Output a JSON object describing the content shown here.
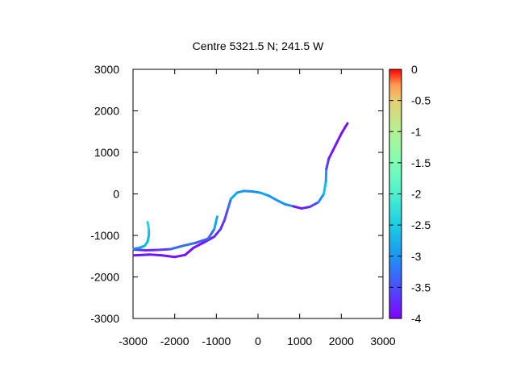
{
  "chart_data": {
    "type": "line",
    "title": "Centre 5321.5 N; 241.5  W",
    "xlabel": "",
    "ylabel": "",
    "xlim": [
      -3000,
      3000
    ],
    "ylim": [
      -3000,
      3000
    ],
    "xticks": [
      -3000,
      -2000,
      -1000,
      0,
      1000,
      2000,
      3000
    ],
    "yticks": [
      -3000,
      -2000,
      -1000,
      0,
      1000,
      2000,
      3000
    ],
    "xtick_labels": [
      "-3000",
      "-2000",
      "-1000",
      "0",
      "1000",
      "2000",
      "3000"
    ],
    "ytick_labels": [
      "-3000",
      "-2000",
      "-1000",
      "0",
      "1000",
      "2000",
      "3000"
    ],
    "grid": false,
    "colorbar": {
      "range": [
        -4,
        0
      ],
      "ticks": [
        0,
        -0.5,
        -1,
        -1.5,
        -2,
        -2.5,
        -3,
        -3.5,
        -4
      ],
      "tick_labels": [
        "0",
        "-0.5",
        "-1",
        "-1.5",
        "-2",
        "-2.5",
        "-3",
        "-3.5",
        "-4"
      ],
      "colormap": "rainbow"
    },
    "series": [
      {
        "points": [
          {
            "x": -2980,
            "y": -1480,
            "c": -3.9
          },
          {
            "x": -2600,
            "y": -1460,
            "c": -3.9
          },
          {
            "x": -2300,
            "y": -1480,
            "c": -3.9
          },
          {
            "x": -2000,
            "y": -1520,
            "c": -3.9
          },
          {
            "x": -1750,
            "y": -1470,
            "c": -3.9
          },
          {
            "x": -1550,
            "y": -1300,
            "c": -3.9
          },
          {
            "x": -1300,
            "y": -1170,
            "c": -3.9
          },
          {
            "x": -1050,
            "y": -1030,
            "c": -3.8
          },
          {
            "x": -900,
            "y": -850,
            "c": -3.8
          },
          {
            "x": -800,
            "y": -620,
            "c": -3.7
          },
          {
            "x": -720,
            "y": -350,
            "c": -3.6
          },
          {
            "x": -650,
            "y": -120,
            "c": -3.3
          },
          {
            "x": -500,
            "y": 30,
            "c": -2.8
          },
          {
            "x": -350,
            "y": 70,
            "c": -3.5
          },
          {
            "x": -150,
            "y": 60,
            "c": -3.0
          },
          {
            "x": 50,
            "y": 30,
            "c": -3.5
          },
          {
            "x": 250,
            "y": -40,
            "c": -2.7
          },
          {
            "x": 450,
            "y": -150,
            "c": -3.8
          },
          {
            "x": 650,
            "y": -250,
            "c": -2.6
          },
          {
            "x": 850,
            "y": -300,
            "c": -3.9
          },
          {
            "x": 1050,
            "y": -350,
            "c": -3.9
          },
          {
            "x": 1250,
            "y": -310,
            "c": -3.8
          },
          {
            "x": 1450,
            "y": -200,
            "c": -3.5
          },
          {
            "x": 1580,
            "y": 0,
            "c": -3.0
          },
          {
            "x": 1630,
            "y": 300,
            "c": -2.8
          },
          {
            "x": 1640,
            "y": 600,
            "c": -3.6
          },
          {
            "x": 1700,
            "y": 850,
            "c": -3.8
          },
          {
            "x": 1800,
            "y": 1050,
            "c": -3.9
          },
          {
            "x": 1900,
            "y": 1250,
            "c": -3.9
          },
          {
            "x": 2000,
            "y": 1450,
            "c": -3.9
          },
          {
            "x": 2100,
            "y": 1620,
            "c": -3.9
          },
          {
            "x": 2150,
            "y": 1700,
            "c": -3.9
          }
        ]
      },
      {
        "points": [
          {
            "x": -2980,
            "y": -1340,
            "c": -3.7
          },
          {
            "x": -2700,
            "y": -1360,
            "c": -3.8
          },
          {
            "x": -2400,
            "y": -1350,
            "c": -3.8
          },
          {
            "x": -2100,
            "y": -1330,
            "c": -3.6
          },
          {
            "x": -1800,
            "y": -1250,
            "c": -3.3
          },
          {
            "x": -1500,
            "y": -1180,
            "c": -3.5
          },
          {
            "x": -1200,
            "y": -1080,
            "c": -3.6
          },
          {
            "x": -1050,
            "y": -850,
            "c": -3.3
          },
          {
            "x": -980,
            "y": -550,
            "c": -2.9
          }
        ]
      },
      {
        "points": [
          {
            "x": -2980,
            "y": -1320,
            "c": -3.4
          },
          {
            "x": -2850,
            "y": -1300,
            "c": -3.2
          },
          {
            "x": -2720,
            "y": -1250,
            "c": -3.0
          },
          {
            "x": -2650,
            "y": -1150,
            "c": -2.9
          },
          {
            "x": -2620,
            "y": -1000,
            "c": -3.0
          },
          {
            "x": -2620,
            "y": -850,
            "c": -2.8
          },
          {
            "x": -2650,
            "y": -680,
            "c": -2.7
          }
        ]
      }
    ]
  }
}
